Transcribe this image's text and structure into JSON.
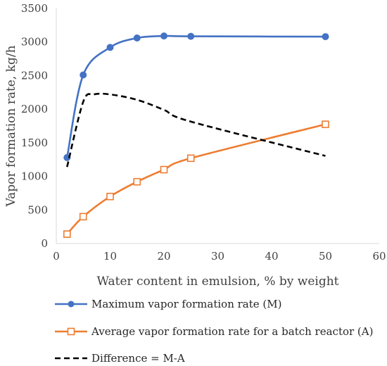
{
  "chart_data": {
    "type": "line",
    "title": "",
    "xlabel": "Water content in emulsion, % by weight",
    "ylabel": "Vapor formation rate, kg/h",
    "xlim": [
      0,
      60
    ],
    "ylim": [
      0,
      3500
    ],
    "xticks": [
      0,
      10,
      20,
      30,
      40,
      50,
      60
    ],
    "yticks": [
      0,
      500,
      1000,
      1500,
      2000,
      2500,
      3000,
      3500
    ],
    "grid": false,
    "legend_position": "bottom",
    "series": [
      {
        "name": "Maximum vapor formation rate (M)",
        "color": "#4472C4",
        "marker": "circle",
        "line_style": "solid",
        "x": [
          2,
          5,
          10,
          15,
          20,
          25,
          50
        ],
        "y": [
          1280,
          2510,
          2920,
          3060,
          3090,
          3085,
          3080
        ]
      },
      {
        "name": "Average vapor formation rate for a batch reactor (A)",
        "color": "#ED7D31",
        "marker": "square-open",
        "line_style": "solid",
        "x": [
          2,
          5,
          10,
          15,
          20,
          25,
          50
        ],
        "y": [
          140,
          400,
          700,
          920,
          1100,
          1270,
          1775
        ]
      },
      {
        "name": "Difference = M-A",
        "color": "#000000",
        "marker": "none",
        "line_style": "dashed",
        "x": [
          2,
          5,
          7,
          10,
          15,
          20,
          25,
          50
        ],
        "y": [
          1140,
          2110,
          2220,
          2220,
          2140,
          1990,
          1815,
          1305
        ]
      }
    ]
  }
}
